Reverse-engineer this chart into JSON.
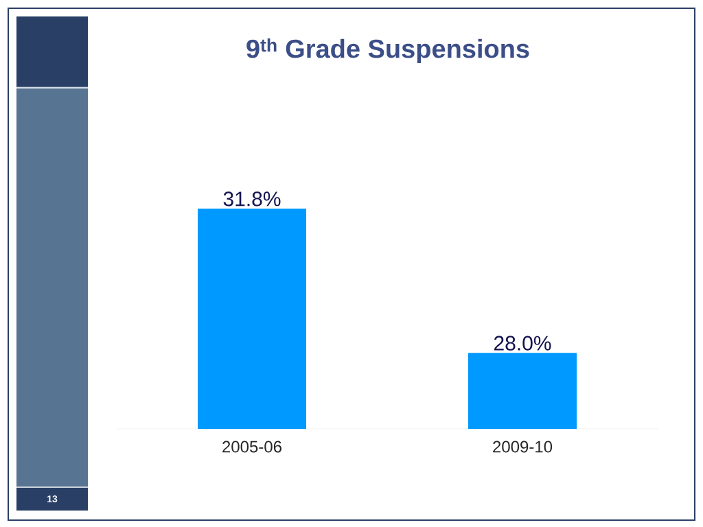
{
  "chart_data": {
    "type": "bar",
    "title": "9$^{th}$ Grade Suspensions",
    "categories": [
      "2005-06",
      "2009-10"
    ],
    "values": [
      31.8,
      28.0
    ],
    "value_labels": [
      "31.8%",
      "28.0%"
    ],
    "color": "#0099ff",
    "ylim": [
      26,
      31.8
    ],
    "annotations": [
      "13"
    ]
  }
}
